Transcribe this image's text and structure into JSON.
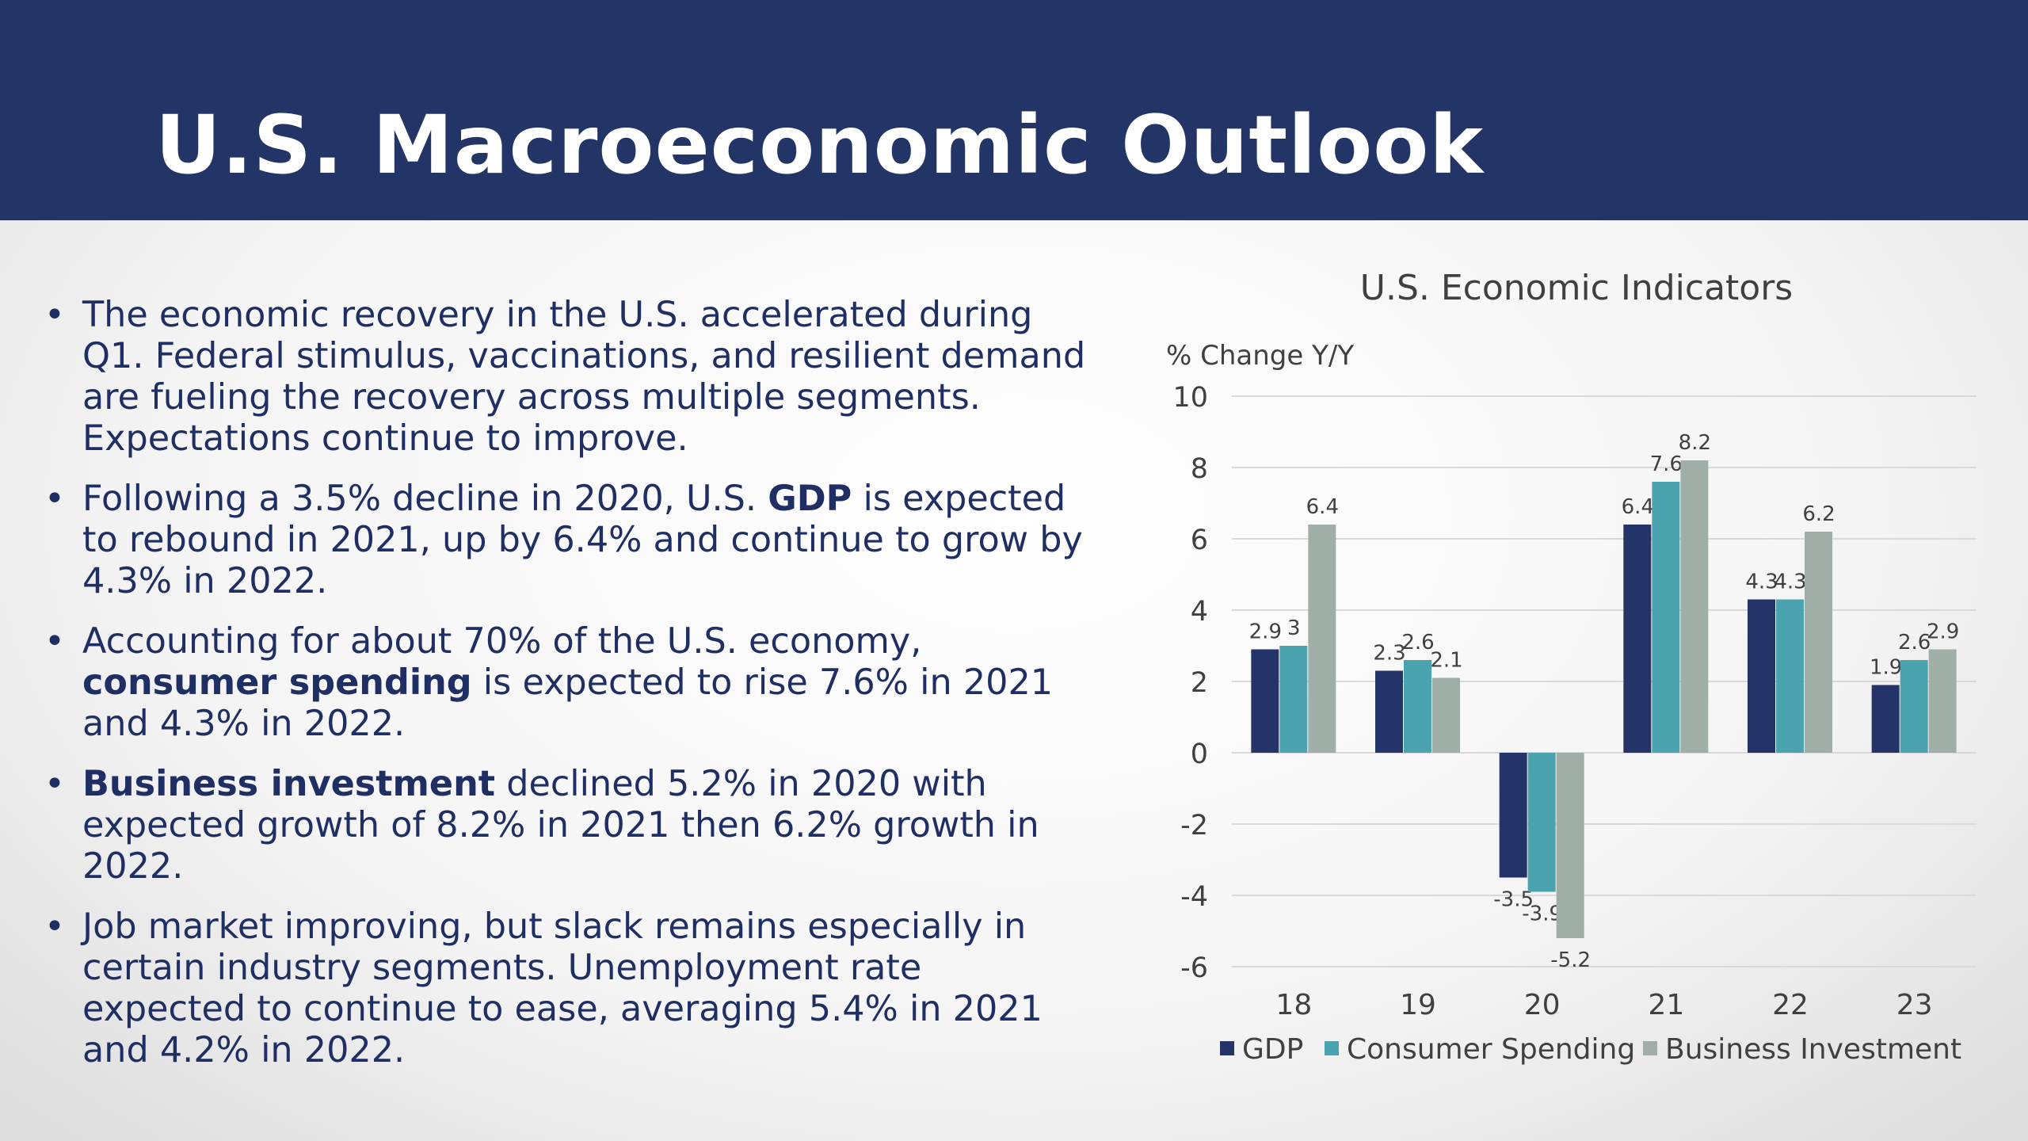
{
  "slide": {
    "title": "U.S. Macroeconomic Outlook",
    "bullets": [
      {
        "parts": [
          {
            "text": "The economic recovery in the U.S. accelerated during Q1. Federal stimulus, vaccinations, and resilient demand are fueling the recovery across multiple segments. Expectations continue to improve.",
            "bold": false
          }
        ]
      },
      {
        "parts": [
          {
            "text": "Following a 3.5% decline in 2020, U.S. ",
            "bold": false
          },
          {
            "text": "GDP",
            "bold": true
          },
          {
            "text": " is expected to rebound in 2021, up by 6.4% and continue to grow by 4.3% in 2022.",
            "bold": false
          }
        ]
      },
      {
        "parts": [
          {
            "text": "Accounting for about 70% of the U.S. economy, ",
            "bold": false
          },
          {
            "text": "consumer spending",
            "bold": true
          },
          {
            "text": " is expected to rise 7.6% in 2021 and 4.3% in 2022.",
            "bold": false
          }
        ]
      },
      {
        "parts": [
          {
            "text": "Business investment",
            "bold": true
          },
          {
            "text": " declined 5.2% in 2020 with expected growth of 8.2% in 2021 then 6.2% growth in 2022.",
            "bold": false
          }
        ]
      },
      {
        "parts": [
          {
            "text": "Job market improving, but slack remains especially in certain industry segments. Unemployment rate expected to continue to ease, averaging 5.4% in 2021 and 4.2% in 2022.",
            "bold": false
          }
        ]
      }
    ]
  },
  "colors": {
    "title_bar": "#233466",
    "text": "#1f2f63",
    "gdp": "#243469",
    "consumer_spending": "#4aa3af",
    "business_investment": "#9fafa7",
    "grid": "#d9d9d9",
    "axis_text": "#404040"
  },
  "chart_data": {
    "type": "bar",
    "title": "U.S. Economic Indicators",
    "ylabel": "% Change Y/Y",
    "xlabel": "",
    "categories": [
      "18",
      "19",
      "20",
      "21",
      "22",
      "23"
    ],
    "ylim": [
      -6,
      10
    ],
    "yticks": [
      10,
      8,
      6,
      4,
      2,
      0,
      -2,
      -4,
      -6
    ],
    "grid": true,
    "legend_position": "bottom",
    "series": [
      {
        "name": "GDP",
        "values": [
          2.9,
          2.3,
          -3.5,
          6.4,
          4.3,
          1.9
        ]
      },
      {
        "name": "Consumer Spending",
        "values": [
          3,
          2.6,
          -3.9,
          7.6,
          4.3,
          2.6
        ]
      },
      {
        "name": "Business Investment",
        "values": [
          6.4,
          2.1,
          -5.2,
          8.2,
          6.2,
          2.9
        ]
      }
    ],
    "data_labels": [
      [
        "2.9",
        "2.3",
        "-3.5",
        "6.4",
        "4.3",
        "1.9"
      ],
      [
        "3",
        "2.6",
        "-3.9",
        "7.6",
        "4.3",
        "2.6"
      ],
      [
        "6.4",
        "2.1",
        "-5.2",
        "8.2",
        "6.2",
        "2.9"
      ]
    ]
  }
}
